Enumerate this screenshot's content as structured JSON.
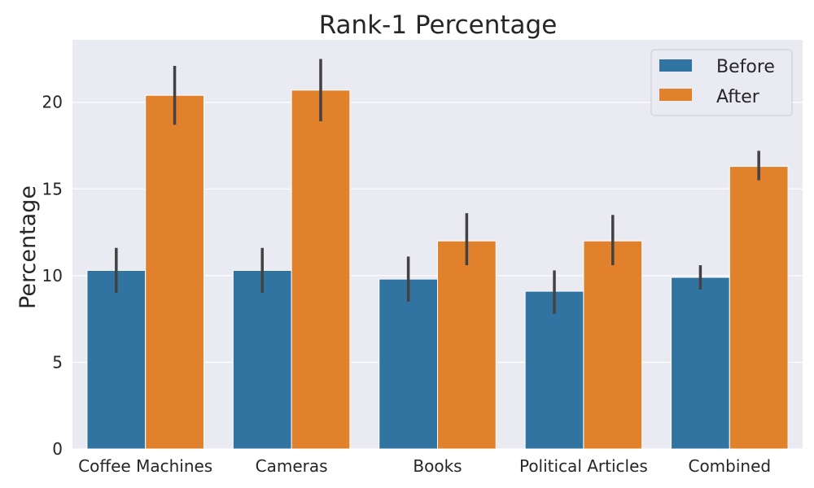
{
  "chart_data": {
    "type": "bar",
    "title": "Rank-1 Percentage",
    "xlabel": "",
    "ylabel": "Percentage",
    "categories": [
      "Coffee Machines",
      "Cameras",
      "Books",
      "Political Articles",
      "Combined"
    ],
    "series": [
      {
        "name": "Before",
        "color": "#3274a1",
        "values": [
          10.3,
          10.3,
          9.8,
          9.1,
          9.9
        ],
        "err_low": [
          9.0,
          9.0,
          8.5,
          7.8,
          9.2
        ],
        "err_high": [
          11.6,
          11.6,
          11.1,
          10.3,
          10.6
        ]
      },
      {
        "name": "After",
        "color": "#e1812c",
        "values": [
          20.4,
          20.7,
          12.0,
          12.0,
          16.3
        ],
        "err_low": [
          18.7,
          18.9,
          10.6,
          10.6,
          15.5
        ],
        "err_high": [
          22.1,
          22.5,
          13.6,
          13.5,
          17.2
        ]
      }
    ],
    "ylim": [
      0,
      23.6
    ],
    "yticks": [
      0,
      5,
      10,
      15,
      20
    ],
    "grid": true,
    "legend": "top-right",
    "background": "#eaeaf2"
  }
}
